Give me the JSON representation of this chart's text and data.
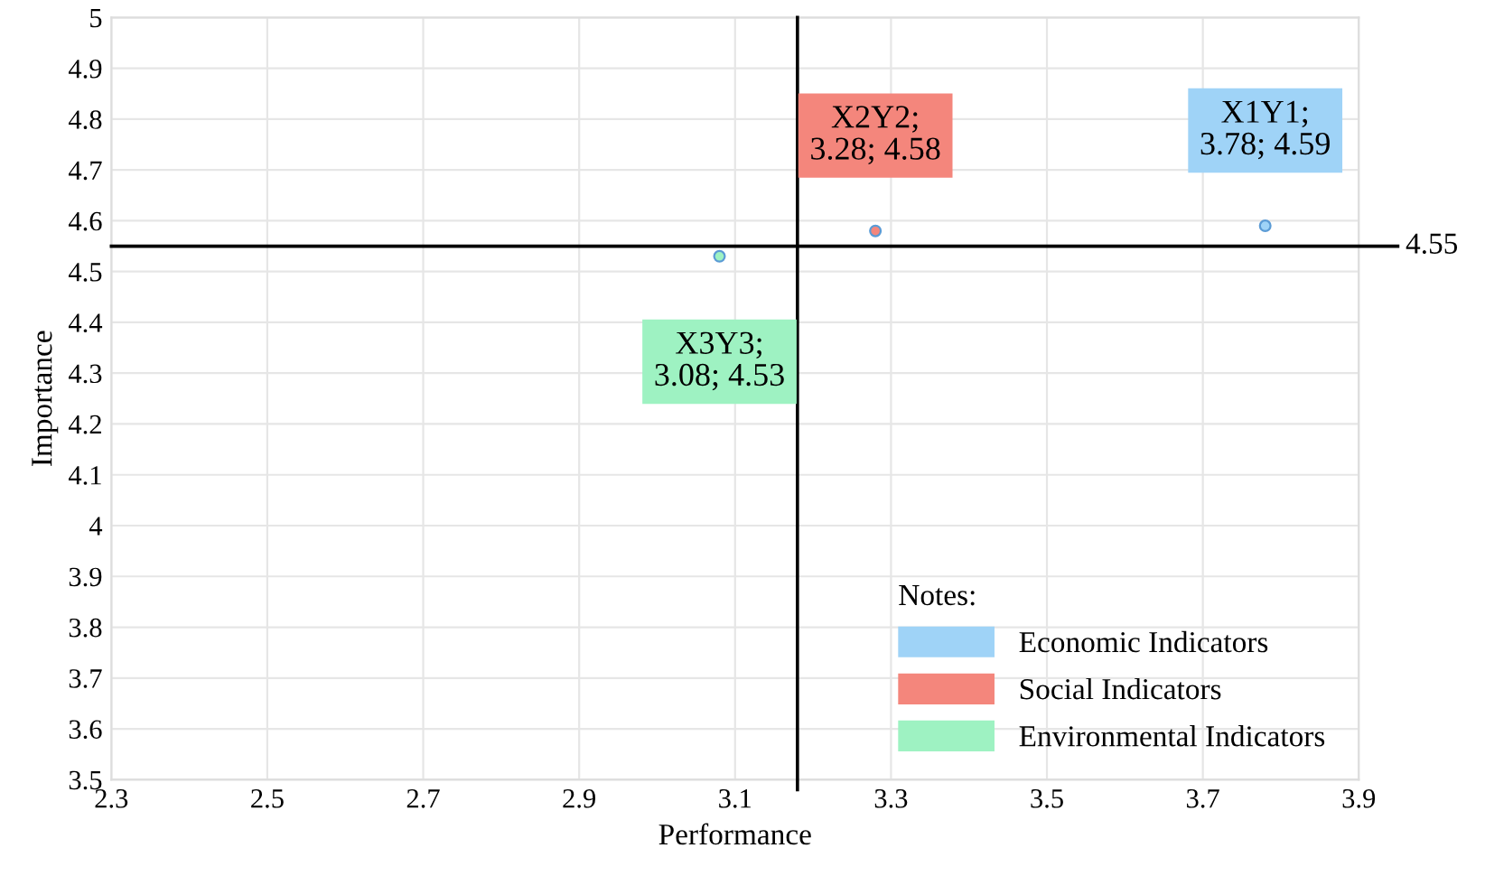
{
  "chart_data": {
    "type": "scatter",
    "xlabel": "Performance",
    "ylabel": "Importance",
    "xlim": [
      2.3,
      3.9
    ],
    "xticks": [
      2.3,
      2.5,
      2.7,
      2.9,
      3.1,
      3.3,
      3.5,
      3.7,
      3.9
    ],
    "ylim": [
      3.5,
      5
    ],
    "yticks": [
      3.5,
      3.6,
      3.7,
      3.8,
      3.9,
      4,
      4.1,
      4.2,
      4.3,
      4.4,
      4.5,
      4.6,
      4.7,
      4.8,
      4.9,
      5
    ],
    "grid": true,
    "legend": "bottom right",
    "legend_title": "Notes:",
    "marker": "circle",
    "series": [
      {
        "name": "Economic Indicators",
        "color": "#9fd3f7",
        "x": [
          3.78
        ],
        "values": [
          4.59
        ]
      },
      {
        "name": "Social Indicators",
        "color": "#f4867c",
        "x": [
          3.28
        ],
        "values": [
          4.58
        ]
      },
      {
        "name": "Environmental Indicators",
        "color": "#9ef2c2",
        "x": [
          3.08
        ],
        "values": [
          4.53
        ]
      }
    ],
    "annotations": [
      {
        "text": "X1Y1;\n3.78; 4.59",
        "x": 3.78,
        "y": 4.59
      },
      {
        "text": "X2Y2;\n3.28; 4.58",
        "x": 3.28,
        "y": 4.58
      },
      {
        "text": "X3Y3;\n3.08; 4.53",
        "x": 3.08,
        "y": 4.53
      }
    ],
    "ref_lines": [
      {
        "axis": "y",
        "value": 4.55,
        "label": "4.55",
        "color": "#000000"
      },
      {
        "axis": "x",
        "value": 3.18,
        "label": null,
        "color": "#000000"
      }
    ]
  }
}
